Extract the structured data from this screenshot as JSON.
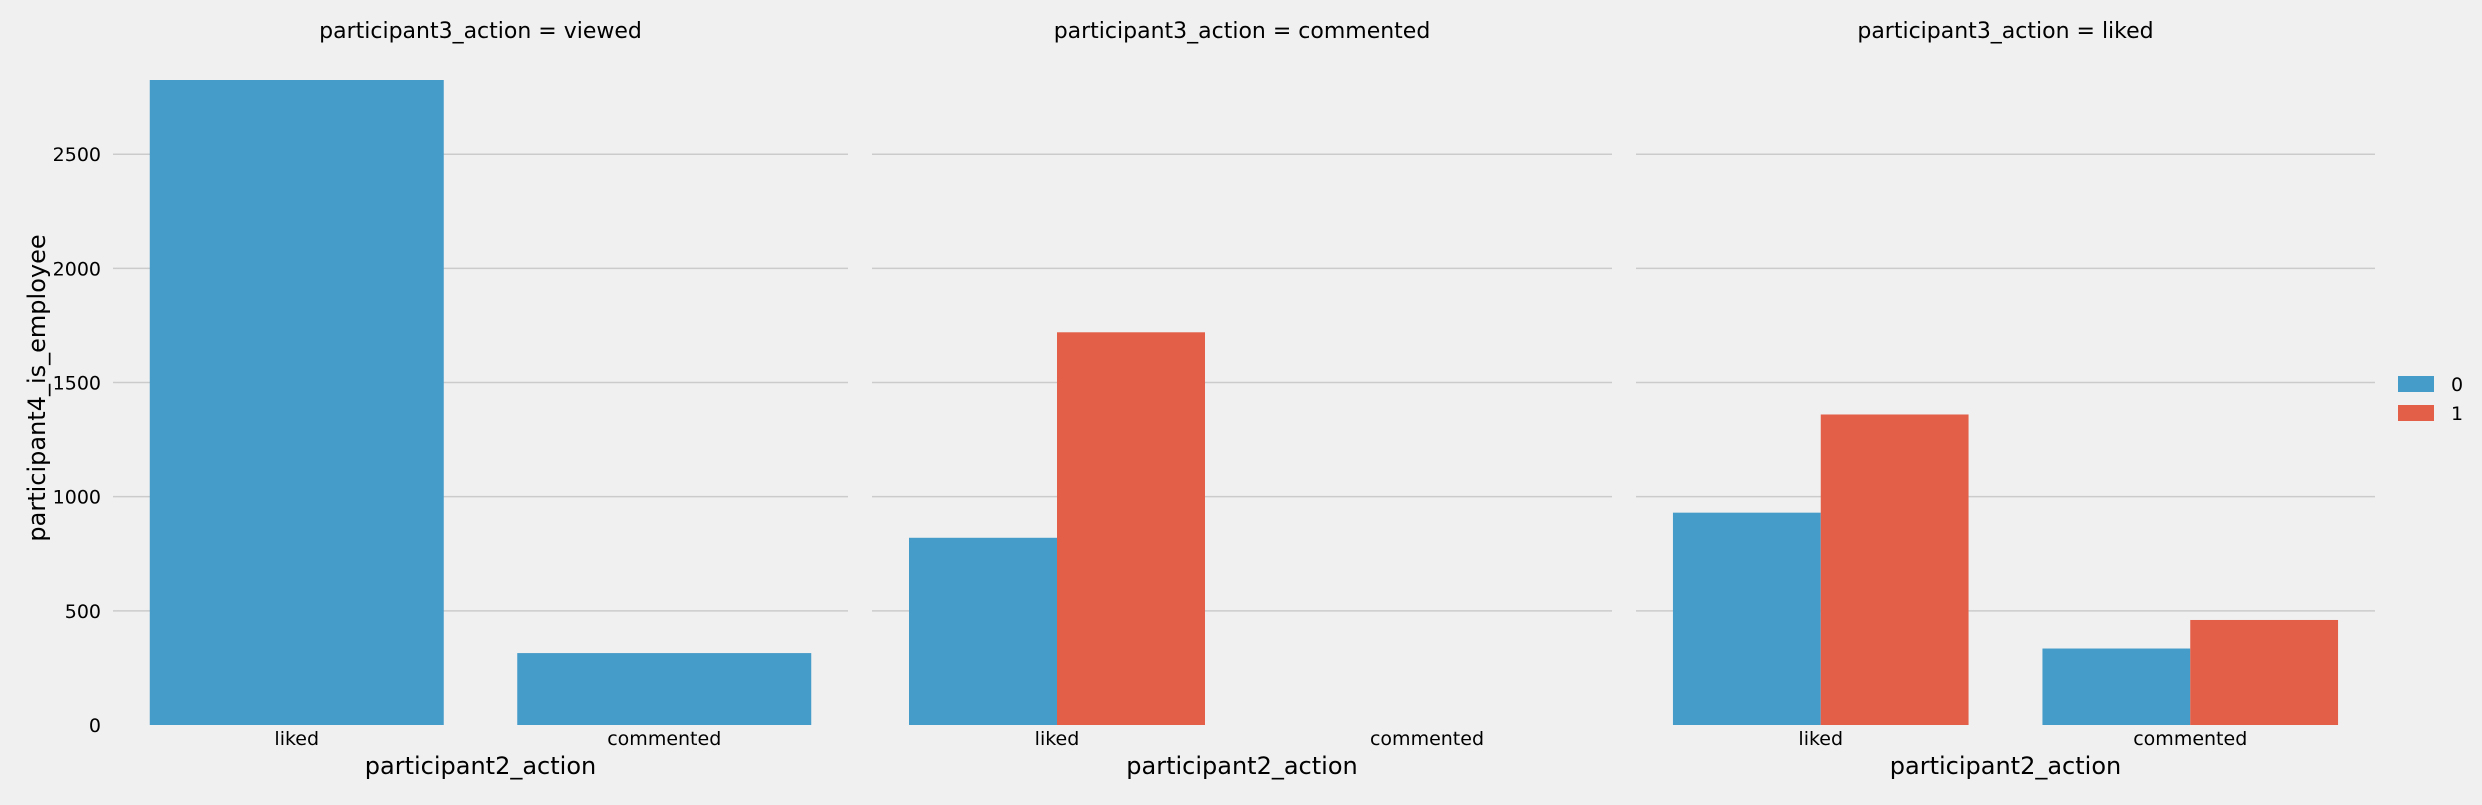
{
  "chart_data": {
    "type": "bar",
    "facets": [
      {
        "title": "participant3_action = viewed",
        "categories": [
          "liked",
          "commented"
        ],
        "series": [
          {
            "hue": "0",
            "values": [
              2825,
              315
            ]
          },
          {
            "hue": "1",
            "values": [
              null,
              null
            ]
          }
        ]
      },
      {
        "title": "participant3_action = commented",
        "categories": [
          "liked",
          "commented"
        ],
        "series": [
          {
            "hue": "0",
            "values": [
              820,
              null
            ]
          },
          {
            "hue": "1",
            "values": [
              1720,
              null
            ]
          }
        ]
      },
      {
        "title": "participant3_action = liked",
        "categories": [
          "liked",
          "commented"
        ],
        "series": [
          {
            "hue": "0",
            "values": [
              930,
              335
            ]
          },
          {
            "hue": "1",
            "values": [
              1360,
              460
            ]
          }
        ]
      }
    ],
    "xlabel": "participant2_action",
    "ylabel": "participant4_is_employee",
    "yticks": [
      0,
      500,
      1000,
      1500,
      2000,
      2500
    ],
    "ylim": [
      0,
      2825
    ],
    "grid": "horizontal",
    "legend": {
      "position": "right",
      "entries": [
        {
          "label": "0",
          "color": "#469cc9"
        },
        {
          "label": "1",
          "color": "#e35f48"
        }
      ]
    },
    "colors": {
      "0": "#469cc9",
      "1": "#e35f48"
    }
  }
}
